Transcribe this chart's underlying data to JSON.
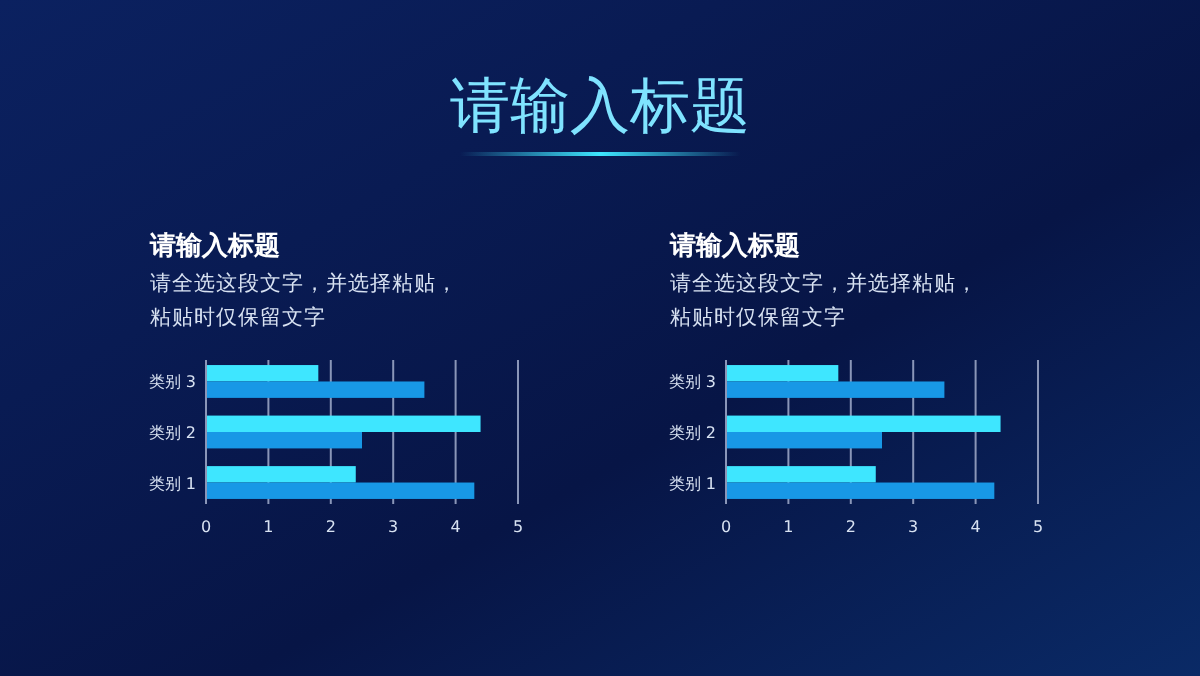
{
  "chart_data": [
    {
      "type": "bar",
      "orientation": "horizontal",
      "title": "请输入标题",
      "subtitle": "请全选这段文字，并选择粘贴，粘贴时仅保留文字",
      "annotations": [
        "请输入标题"
      ],
      "categories": [
        "类别 3",
        "类别 2",
        "类别 1"
      ],
      "series": [
        {
          "color": "#3ee6ff",
          "values": [
            1.8,
            4.4,
            2.4
          ]
        },
        {
          "color": "#1898e6",
          "values": [
            3.5,
            2.5,
            4.3
          ]
        }
      ],
      "xlim": [
        0,
        5
      ],
      "xticks": [
        0,
        1,
        2,
        3,
        4,
        5
      ],
      "grid": "x"
    },
    {
      "type": "bar",
      "orientation": "horizontal",
      "title": "请输入标题",
      "subtitle": "请全选这段文字，并选择粘贴，粘贴时仅保留文字",
      "categories": [
        "类别 3",
        "类别 2",
        "类别 1"
      ],
      "series": [
        {
          "color": "#3ee6ff",
          "values": [
            1.8,
            4.4,
            2.4
          ]
        },
        {
          "color": "#1898e6",
          "values": [
            3.5,
            2.5,
            4.3
          ]
        }
      ],
      "xlim": [
        0,
        5
      ],
      "xticks": [
        0,
        1,
        2,
        3,
        4,
        5
      ],
      "grid": "x"
    }
  ]
}
